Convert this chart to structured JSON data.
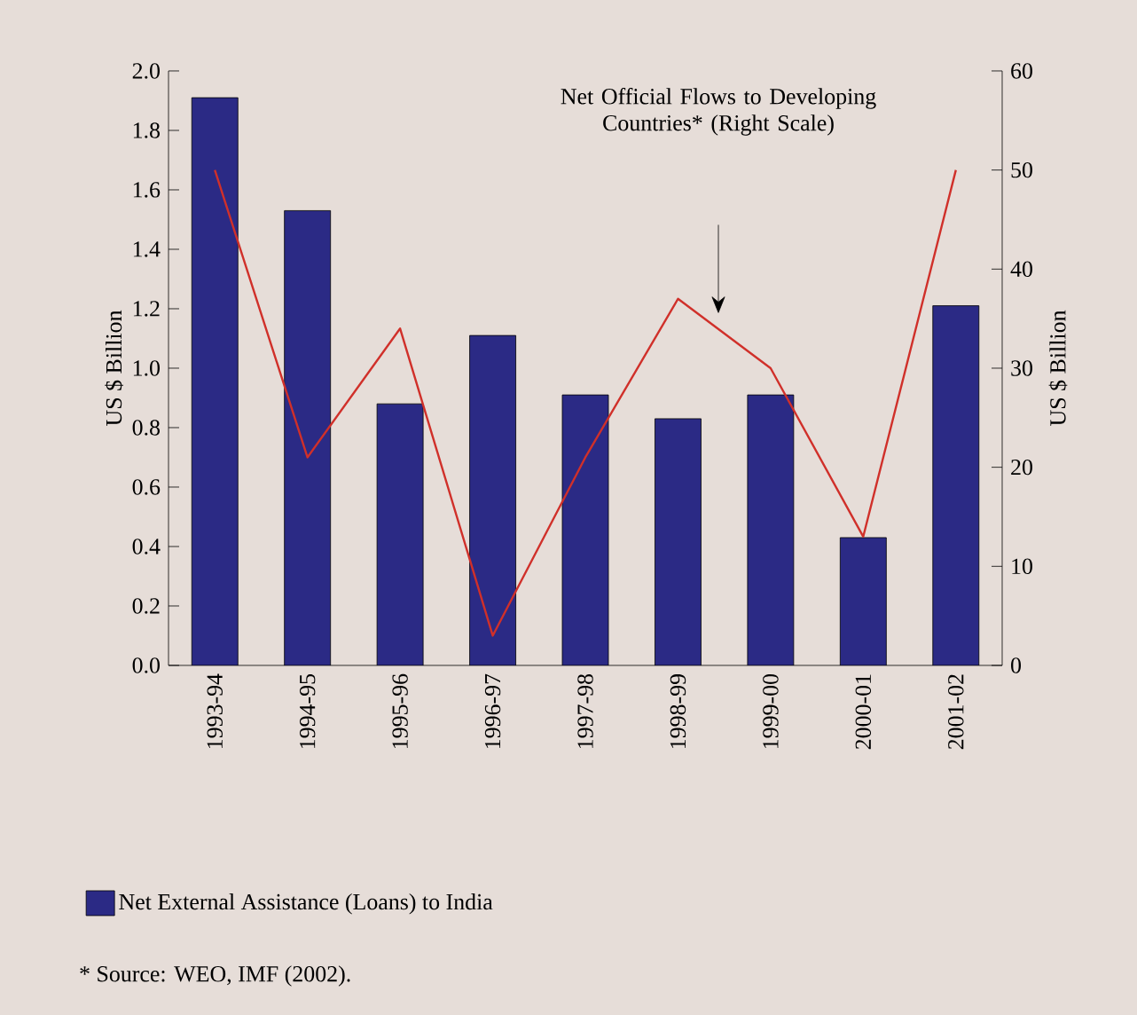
{
  "chart_data": {
    "type": "bar",
    "categories": [
      "1993-94",
      "1994-95",
      "1995-96",
      "1996-97",
      "1997-98",
      "1998-99",
      "1999-00",
      "2000-01",
      "2001-02"
    ],
    "series": [
      {
        "name": "Net External Assistance (Loans) to India",
        "color": "#2b2a85",
        "values": [
          1.91,
          1.53,
          0.88,
          1.11,
          0.91,
          0.83,
          0.91,
          0.43,
          1.21
        ]
      },
      {
        "type": "line",
        "axis": "y2",
        "color": "#d0302a",
        "values": [
          50,
          21,
          34,
          3,
          21,
          37,
          30,
          13,
          50
        ]
      }
    ],
    "ylabel": "US $ Billion",
    "y2label": "US $ Billion",
    "ylim": [
      0,
      2.0
    ],
    "yticks": [
      {
        "value": 0,
        "label": "0.0"
      },
      {
        "value": 0.2,
        "label": "0.2"
      },
      {
        "value": 0.4,
        "label": "0.4"
      },
      {
        "value": 0.6,
        "label": "0.6"
      },
      {
        "value": 0.8,
        "label": "0.8"
      },
      {
        "value": 1.0,
        "label": "1.0"
      },
      {
        "value": 1.2,
        "label": "1.2"
      },
      {
        "value": 1.4,
        "label": "1.4"
      },
      {
        "value": 1.6,
        "label": "1.6"
      },
      {
        "value": 1.8,
        "label": "1.8"
      },
      {
        "value": 2.0,
        "label": "2.0"
      }
    ],
    "y2lim": [
      0,
      60
    ],
    "y2ticks": [
      0,
      10,
      20,
      30,
      40,
      50,
      60
    ],
    "annotations": [
      "Net Official Flows to Developing Countries* (Right Scale)",
      "* Source: WEO, IMF (2002)."
    ],
    "legend": "bottom left",
    "grid": false
  }
}
